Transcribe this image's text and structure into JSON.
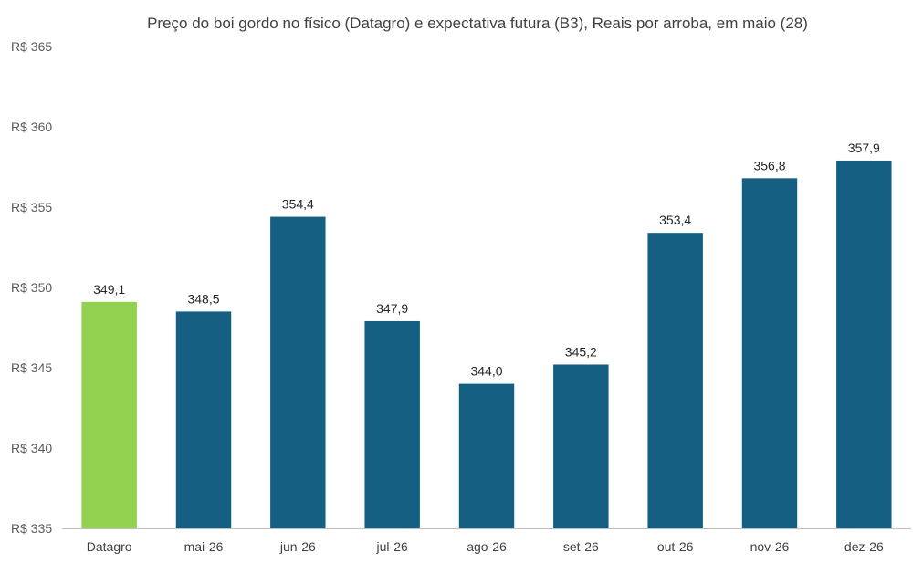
{
  "chart_data": {
    "type": "bar",
    "title": "Preço do boi gordo no físico (Datagro)  e expectativa futura (B3), Reais por arroba, em maio (28)",
    "xlabel": "",
    "ylabel": "",
    "categories": [
      "Datagro",
      "mai-26",
      "jun-26",
      "jul-26",
      "ago-26",
      "set-26",
      "out-26",
      "nov-26",
      "dez-26"
    ],
    "values": [
      349.1,
      348.5,
      354.4,
      347.9,
      344.0,
      345.2,
      353.4,
      356.8,
      357.9
    ],
    "data_labels": [
      "349,1",
      "348,5",
      "354,4",
      "347,9",
      "344,0",
      "345,2",
      "353,4",
      "356,8",
      "357,9"
    ],
    "ylim": [
      335,
      365
    ],
    "yticks": [
      335,
      340,
      345,
      350,
      355,
      360,
      365
    ],
    "ytick_labels": [
      "R$ 335",
      "R$ 340",
      "R$ 345",
      "R$ 350",
      "R$ 355",
      "R$ 360",
      "R$ 365"
    ],
    "grid": false,
    "legend": "none",
    "colors": {
      "highlight": "#92d050",
      "bar": "#156082",
      "axis": "#bfbfbf"
    },
    "highlight_index": 0
  }
}
